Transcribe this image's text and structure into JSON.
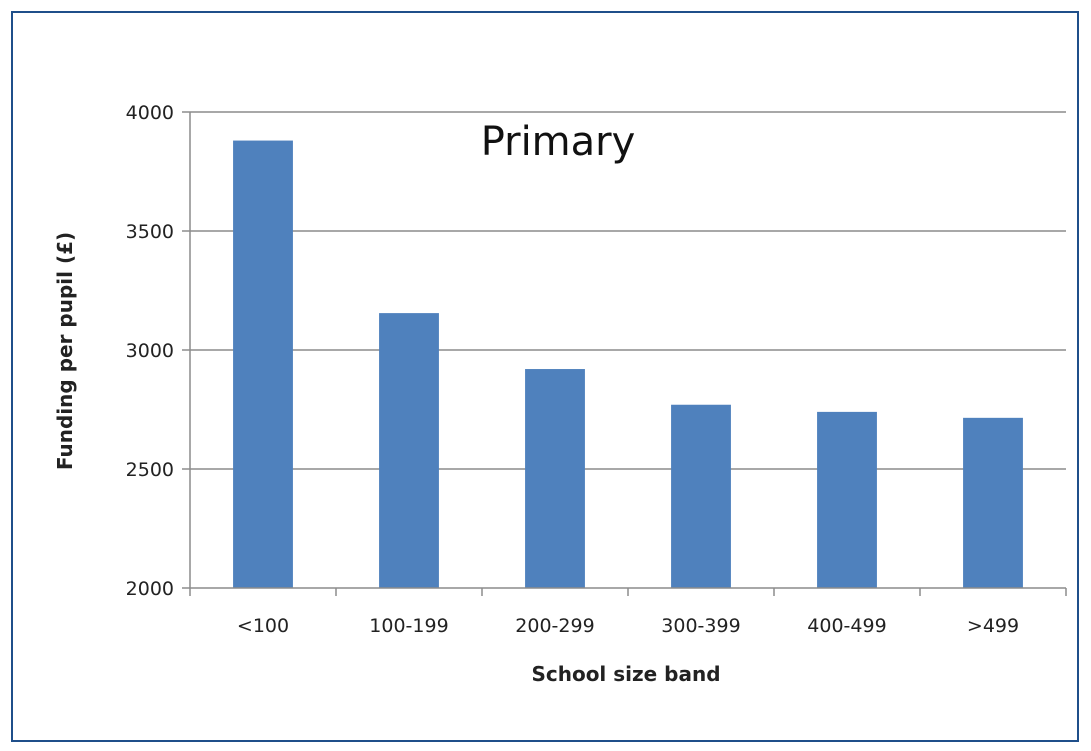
{
  "chart_data": {
    "type": "bar",
    "title": "Primary",
    "xlabel": "School size band",
    "ylabel": "Funding per pupil (£)",
    "categories": [
      "<100",
      "100-199",
      "200-299",
      "300-399",
      "400-499",
      ">499"
    ],
    "values": [
      3880,
      3155,
      2920,
      2770,
      2740,
      2715
    ],
    "ylim": [
      2000,
      4000
    ],
    "yticks": [
      2000,
      2500,
      3000,
      3500,
      4000
    ],
    "grid": true,
    "legend": "none",
    "bar_color": "#4f81bd"
  },
  "frame_color": "#1f4f8a"
}
